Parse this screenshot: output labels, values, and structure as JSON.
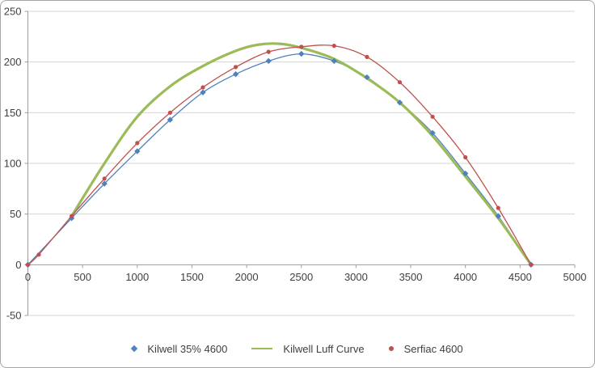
{
  "theme": {
    "background": "#FFFFFF",
    "border": "#A6A6A6",
    "grid": "#D4D4D4",
    "axis": "#9C9C9C",
    "text": "#404040"
  },
  "chart_data": {
    "type": "scatter",
    "title": "",
    "xlabel": "",
    "ylabel": "",
    "xlim": [
      0,
      5000
    ],
    "ylim": [
      -50,
      250
    ],
    "xticks": [
      0,
      500,
      1000,
      1500,
      2000,
      2500,
      3000,
      3500,
      4000,
      4500,
      5000
    ],
    "yticks": [
      -50,
      0,
      50,
      100,
      150,
      200,
      250
    ],
    "grid": "horizontal",
    "legend_position": "bottom",
    "series": [
      {
        "name": "Kilwell 35% 4600",
        "color": "#4F81BD",
        "marker": "diamond",
        "line_width": 1.3,
        "points": [
          [
            0,
            0
          ],
          [
            400,
            46
          ],
          [
            700,
            80
          ],
          [
            1000,
            112
          ],
          [
            1300,
            143
          ],
          [
            1600,
            170
          ],
          [
            1900,
            188
          ],
          [
            2200,
            201
          ],
          [
            2500,
            208
          ],
          [
            2800,
            201
          ],
          [
            3100,
            185
          ],
          [
            3400,
            160
          ],
          [
            3700,
            130
          ],
          [
            4000,
            90
          ],
          [
            4300,
            48
          ],
          [
            4600,
            0
          ]
        ]
      },
      {
        "name": "Kilwell Luff Curve",
        "color": "#9BBB59",
        "marker": "none",
        "line_width": 3.2,
        "points": [
          [
            400,
            48
          ],
          [
            700,
            100
          ],
          [
            1000,
            146
          ],
          [
            1300,
            176
          ],
          [
            1600,
            196
          ],
          [
            1900,
            211
          ],
          [
            2100,
            217
          ],
          [
            2300,
            218
          ],
          [
            2500,
            214
          ],
          [
            2800,
            203
          ],
          [
            3100,
            184
          ],
          [
            3400,
            160
          ],
          [
            3700,
            127
          ],
          [
            4000,
            87
          ],
          [
            4300,
            46
          ],
          [
            4600,
            0
          ]
        ]
      },
      {
        "name": "Serfiac 4600",
        "color": "#C0504D",
        "marker": "circle",
        "line_width": 1.3,
        "points": [
          [
            0,
            0
          ],
          [
            100,
            10
          ],
          [
            400,
            48
          ],
          [
            700,
            85
          ],
          [
            1000,
            120
          ],
          [
            1300,
            150
          ],
          [
            1600,
            175
          ],
          [
            1900,
            195
          ],
          [
            2200,
            210
          ],
          [
            2500,
            215
          ],
          [
            2800,
            216
          ],
          [
            3100,
            205
          ],
          [
            3400,
            180
          ],
          [
            3700,
            146
          ],
          [
            4000,
            106
          ],
          [
            4300,
            56
          ],
          [
            4600,
            0
          ]
        ]
      }
    ]
  }
}
